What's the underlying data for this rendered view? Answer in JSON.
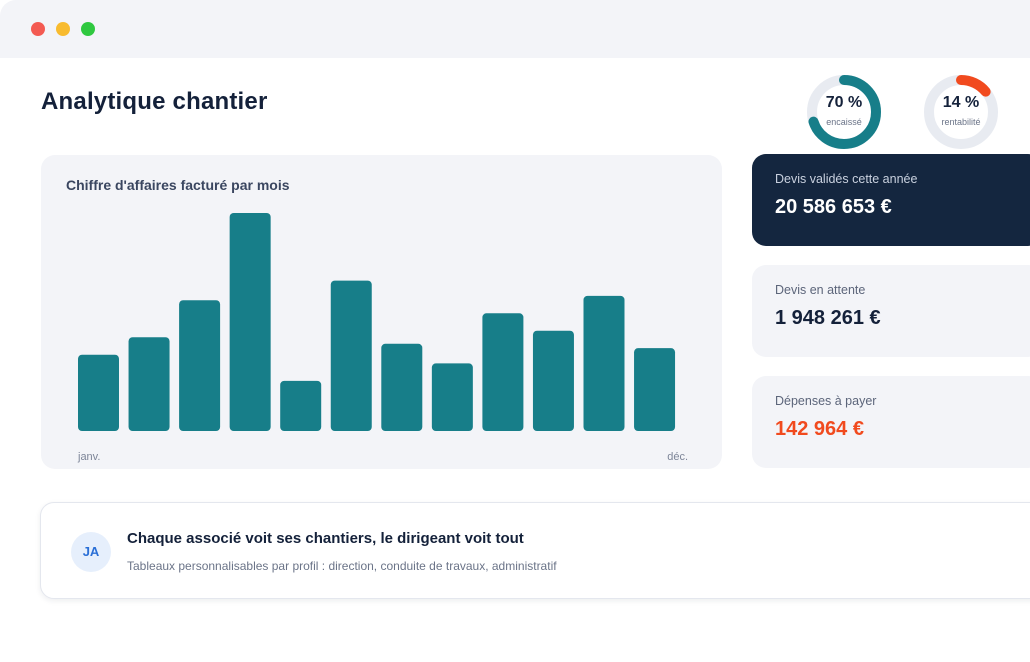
{
  "window": {
    "controls": [
      "close",
      "minimize",
      "zoom"
    ],
    "colors": {
      "close": "#f35a52",
      "minimize": "#f8bb2f",
      "zoom": "#2fc840"
    }
  },
  "header": {
    "title": "Analytique chantier"
  },
  "gauges": [
    {
      "value": "70 %",
      "label": "encaissé",
      "fraction": 0.7,
      "color": "#177e89"
    },
    {
      "value": "14 %",
      "label": "rentabilité",
      "fraction": 0.14,
      "color": "#f14a1e"
    }
  ],
  "chart": {
    "title": "Chiffre d'affaires facturé par mois",
    "x_start_label": "janv.",
    "x_end_label": "déc."
  },
  "chart_data": {
    "type": "bar",
    "title": "Chiffre d'affaires facturé par mois",
    "categories": [
      "janv.",
      "",
      "",
      "",
      "",
      "",
      "",
      "",
      "",
      "",
      "",
      "déc."
    ],
    "values": [
      35,
      43,
      60,
      100,
      23,
      69,
      40,
      31,
      54,
      46,
      62,
      38
    ],
    "ylim": [
      0,
      100
    ],
    "grid": false,
    "color": "#177e89"
  },
  "stats": [
    {
      "label": "Devis validés cette année",
      "value": "20 586 653 €",
      "style": "dark"
    },
    {
      "label": "Devis en attente",
      "value": "1 948 261 €",
      "style": "light"
    },
    {
      "label": "Dépenses à payer",
      "value": "142 964 €",
      "style": "alert",
      "color": "#f14a1e"
    }
  ],
  "info": {
    "avatar": "JA",
    "title": "Chaque associé voit ses chantiers, le dirigeant voit tout",
    "subtitle": "Tableaux personnalisables par profil : direction, conduite de travaux, administratif"
  }
}
